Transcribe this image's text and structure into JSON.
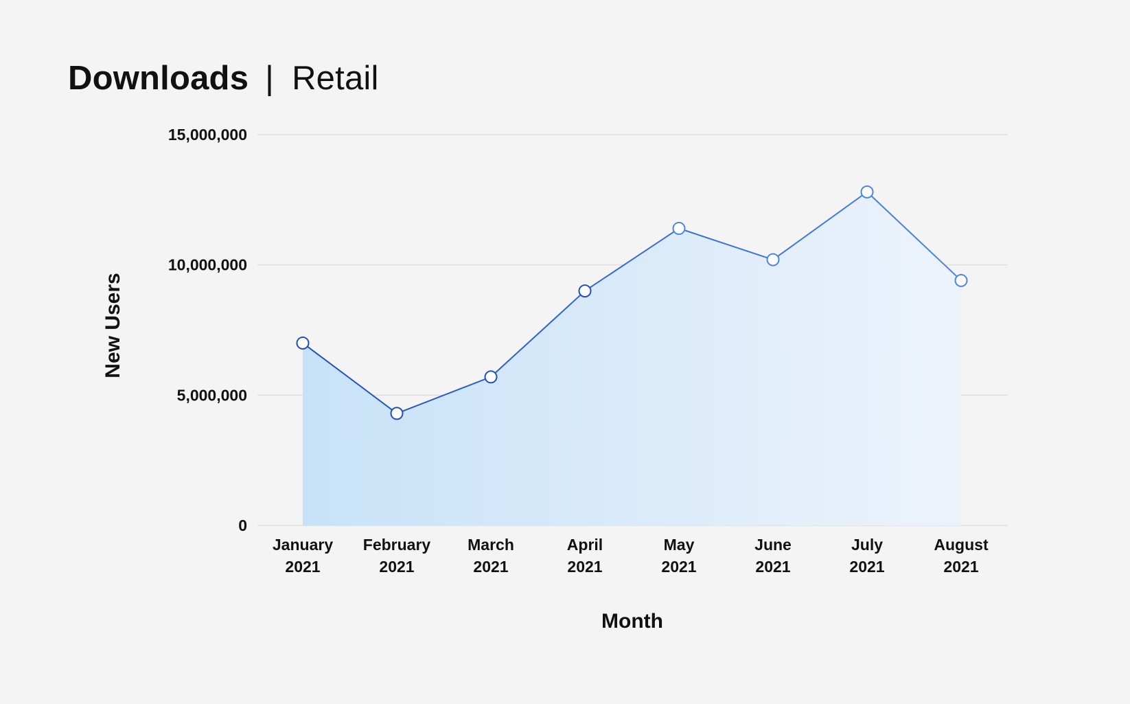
{
  "title": {
    "main": "Downloads",
    "separator": "|",
    "sub": "Retail"
  },
  "chart_data": {
    "type": "area",
    "categories": [
      [
        "January",
        "2021"
      ],
      [
        "February",
        "2021"
      ],
      [
        "March",
        "2021"
      ],
      [
        "April",
        "2021"
      ],
      [
        "May",
        "2021"
      ],
      [
        "June",
        "2021"
      ],
      [
        "July",
        "2021"
      ],
      [
        "August",
        "2021"
      ]
    ],
    "values": [
      7000000,
      4300000,
      5700000,
      9000000,
      11400000,
      10200000,
      12800000,
      9400000
    ],
    "xlabel": "Month",
    "ylabel": "New Users",
    "ylim": [
      0,
      15000000
    ],
    "yticks": [
      0,
      5000000,
      10000000,
      15000000
    ],
    "ytick_labels": [
      "0",
      "5,000,000",
      "10,000,000",
      "15,000,000"
    ],
    "grid": true,
    "colors": {
      "line_start": "#1f4fbf",
      "line_end": "#4a86e0",
      "fill_start": "#c7e2f8",
      "fill_end": "#edf3fb",
      "marker_fill": "#ffffff",
      "marker_stroke": "#1f4fbf",
      "grid": "#dedede",
      "background": "#f4f4f4"
    }
  }
}
